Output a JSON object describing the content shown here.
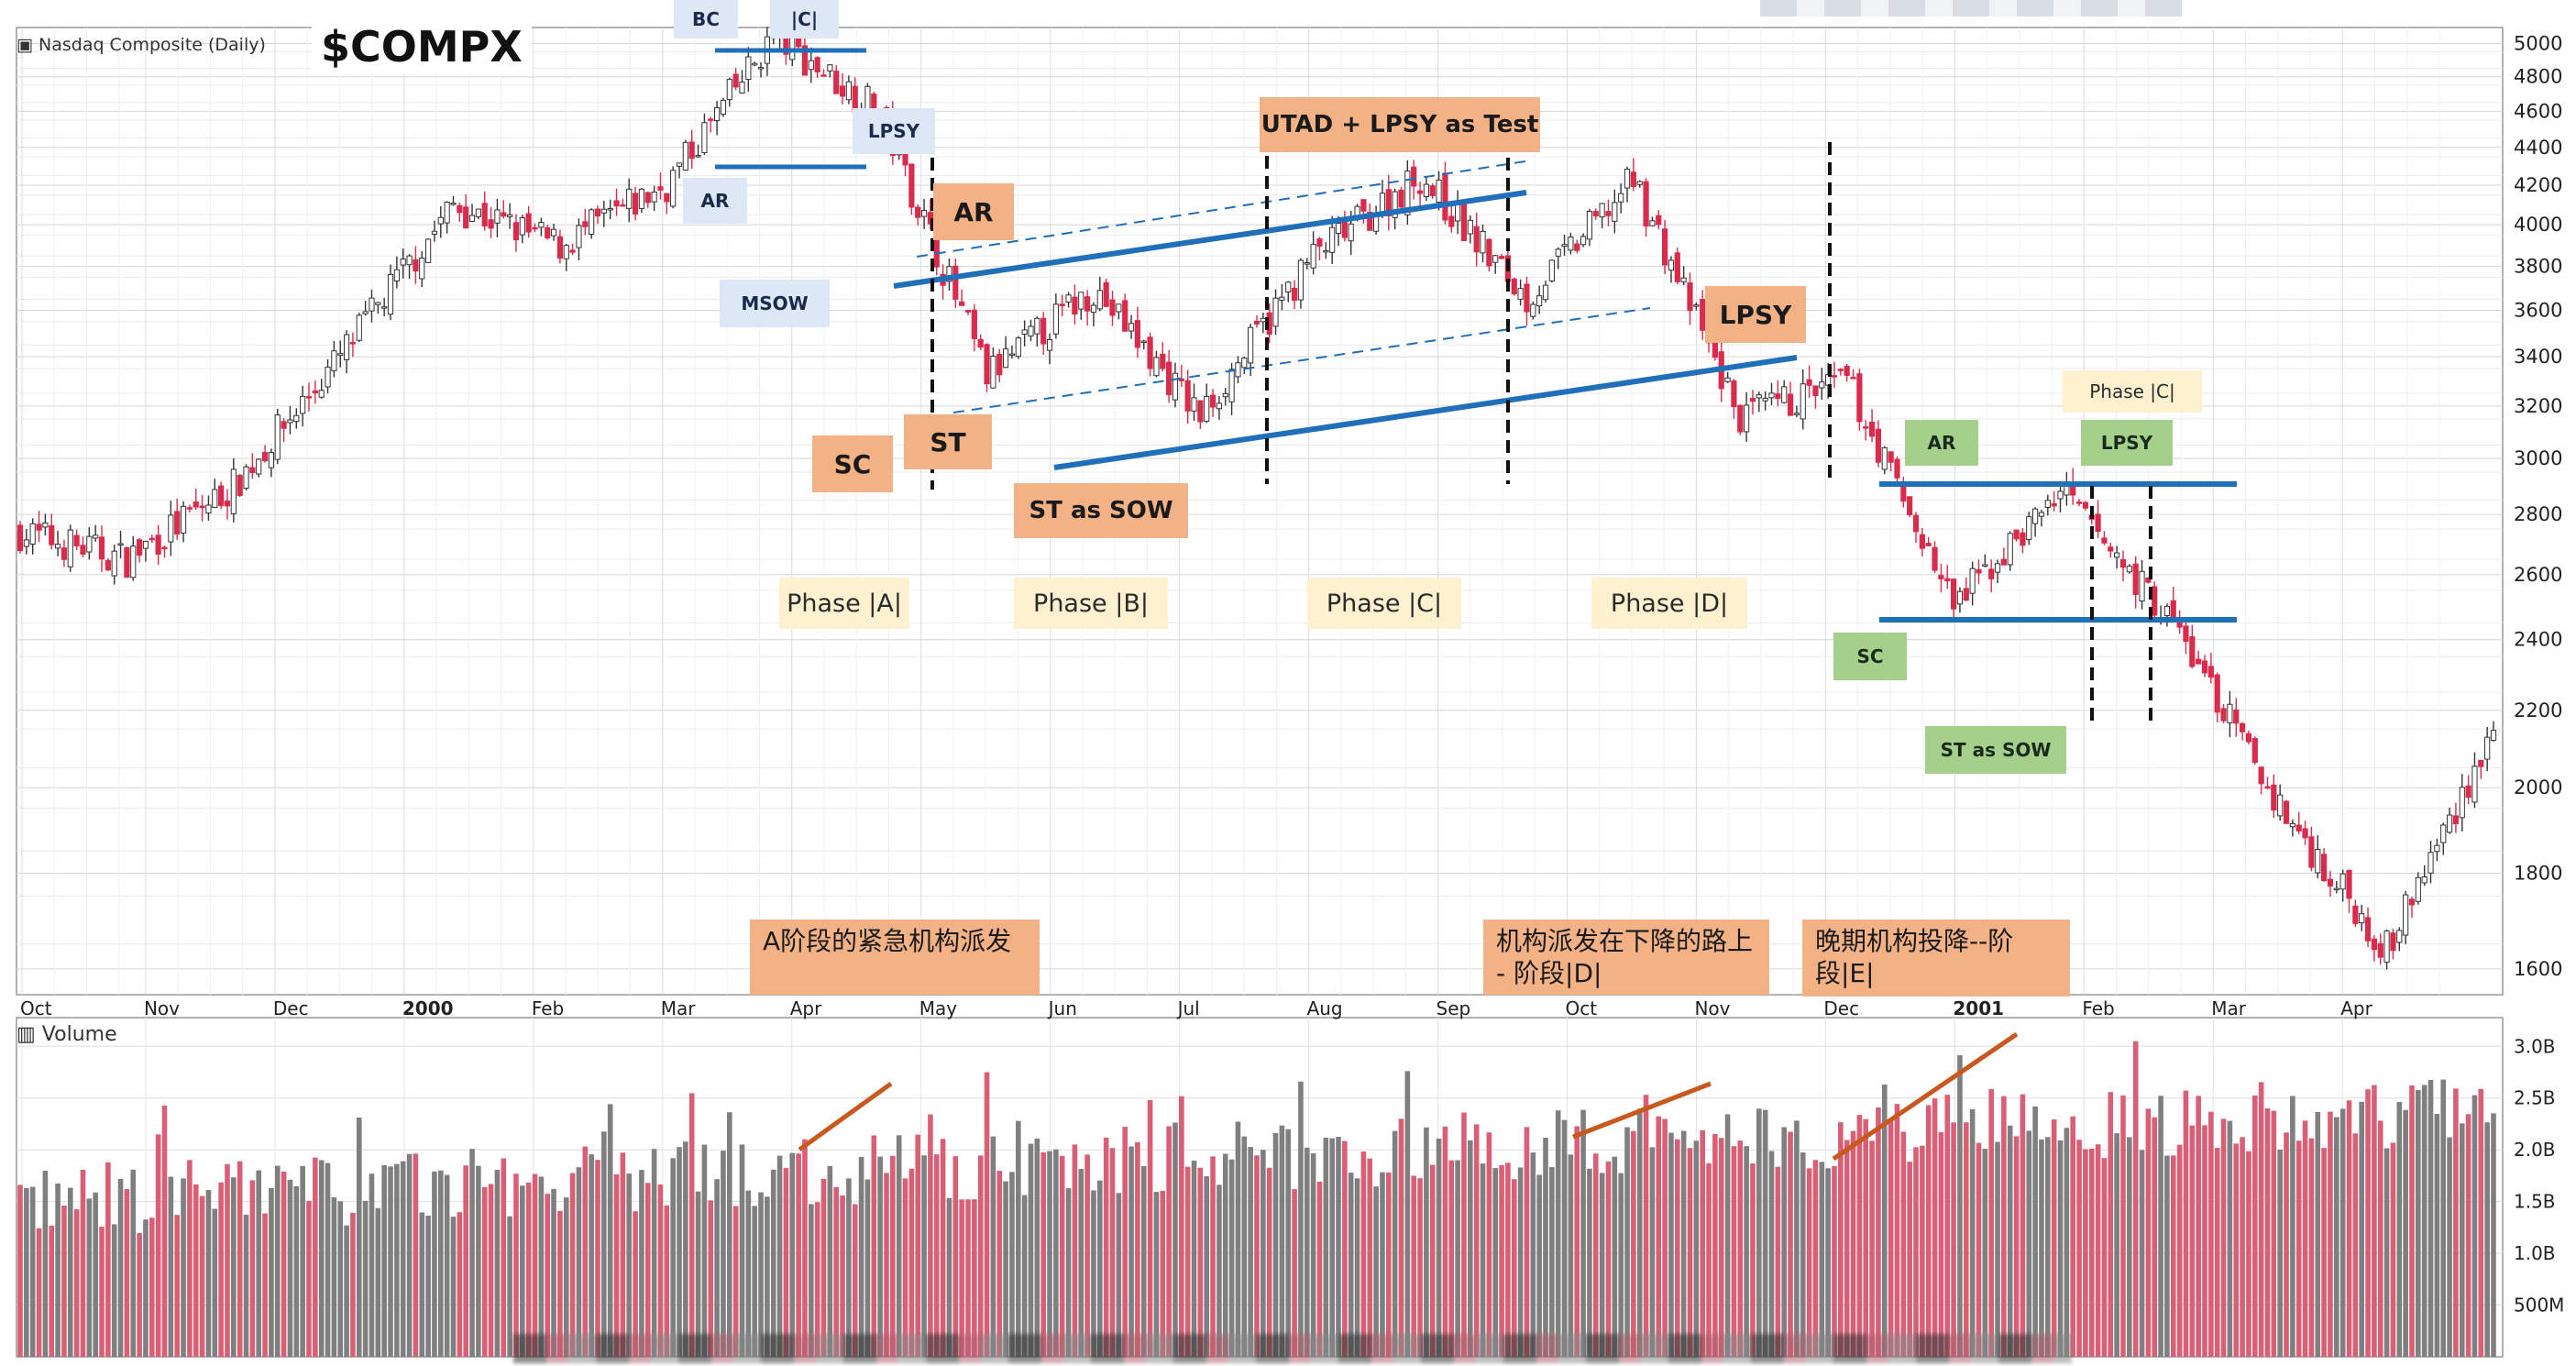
{
  "ticker": "$COMPX",
  "price_panel_title": "Nasdaq Composite (Daily)",
  "volume_panel_title": "Volume",
  "colors": {
    "up_bar": "#7f7f7f",
    "down_bar": "#d95f76",
    "down_candle": "#d92b4b",
    "trend_line": "#1f6fba",
    "volume_trend": "#c8581d"
  },
  "labels": {
    "bc": "BC",
    "c_top": "|C|",
    "ar_top": "AR",
    "lpsy_top": "LPSY",
    "msow": "MSOW",
    "sc": "SC",
    "st": "ST",
    "ar_a": "AR",
    "st_sow": "ST as SOW",
    "utad": "UTAD + LPSY as Test",
    "lpsy_d": "LPSY",
    "phase_a": "Phase |A|",
    "phase_b": "Phase |B|",
    "phase_c": "Phase |C|",
    "phase_d": "Phase |D|",
    "ar_r": "AR",
    "lpsy_r": "LPSY",
    "phase_c_r": "Phase |C|",
    "sc_r": "SC",
    "st_sow_r": "ST as SOW",
    "note_a": "A阶段的紧急机构派发",
    "note_d": "机构派发在下降的路上 - 阶段|D|",
    "note_e": "晚期机构投降--阶段|E|"
  },
  "chart_data": {
    "type": "candlestick",
    "title": "Nasdaq Composite (Daily)",
    "symbol": "$COMPX",
    "x_tick_labels": [
      "Oct",
      "Nov",
      "Dec",
      "2000",
      "Feb",
      "Mar",
      "Apr",
      "May",
      "Jun",
      "Jul",
      "Aug",
      "Sep",
      "Oct",
      "Nov",
      "Dec",
      "2001",
      "Feb",
      "Mar",
      "Apr"
    ],
    "y_tick_labels": [
      "5000",
      "4800",
      "4600",
      "4400",
      "4200",
      "4000",
      "3800",
      "3600",
      "3400",
      "3200",
      "3000",
      "2800",
      "2600",
      "2400",
      "2200",
      "2000",
      "1800",
      "1600"
    ],
    "y_scale": "log",
    "ylim": [
      1550,
      5100
    ],
    "price_path_anchors": [
      {
        "month": "1999-10",
        "close": 2740
      },
      {
        "month": "1999-10-mid",
        "close": 2650
      },
      {
        "month": "1999-11",
        "close": 2900
      },
      {
        "month": "1999-12",
        "close": 3400
      },
      {
        "month": "2000-01",
        "close": 4100
      },
      {
        "month": "2000-01-end",
        "close": 3900
      },
      {
        "month": "2000-02",
        "close": 4200
      },
      {
        "month": "2000-03-10",
        "close": 5048
      },
      {
        "month": "2000-03-end",
        "close": 4600
      },
      {
        "month": "2000-04-mid",
        "close": 3320
      },
      {
        "month": "2000-05",
        "close": 3700
      },
      {
        "month": "2000-05-end",
        "close": 3160
      },
      {
        "month": "2000-06",
        "close": 3850
      },
      {
        "month": "2000-07-mid",
        "close": 4250
      },
      {
        "month": "2000-08",
        "close": 3650
      },
      {
        "month": "2000-09-01",
        "close": 4230
      },
      {
        "month": "2000-10",
        "close": 3150
      },
      {
        "month": "2000-11",
        "close": 3300
      },
      {
        "month": "2000-12",
        "close": 2500
      },
      {
        "month": "2001-01",
        "close": 2880
      },
      {
        "month": "2001-02",
        "close": 2450
      },
      {
        "month": "2001-03",
        "close": 1950
      },
      {
        "month": "2001-04",
        "close": 1640
      },
      {
        "month": "2001-04-end",
        "close": 2150
      }
    ],
    "volume": {
      "y_tick_labels": [
        "3.0B",
        "2.5B",
        "2.0B",
        "1.5B",
        "1.0B",
        "500M"
      ],
      "ylim": [
        0,
        3.1
      ],
      "unit": "B shares",
      "typical_range": [
        1.0,
        2.9
      ]
    }
  }
}
